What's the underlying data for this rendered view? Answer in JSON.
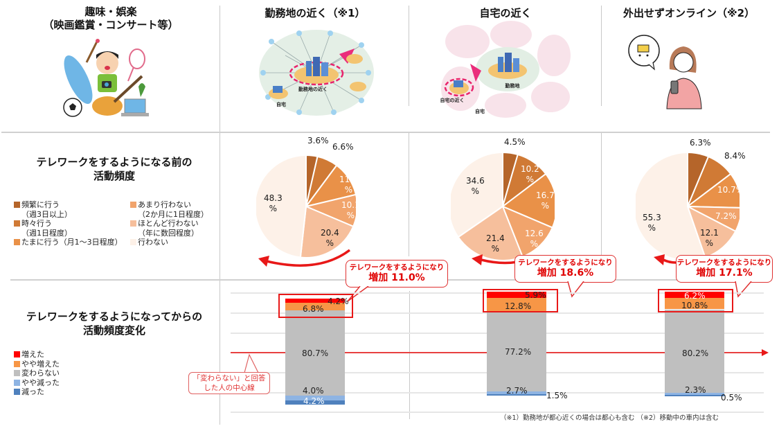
{
  "columns": {
    "hobby": {
      "title_line1": "趣味・娯楽",
      "title_line2": "（映画鑑賞・コンサート等）"
    },
    "near_work": {
      "title": "勤務地の近く（※1）",
      "illus_label_center": "勤務地の近く",
      "illus_label_home": "自宅"
    },
    "near_home": {
      "title": "自宅の近く",
      "illus_label_center": "勤務地",
      "illus_label_near": "自宅の近く",
      "illus_label_home": "自宅"
    },
    "online": {
      "title": "外出せずオンライン（※2）"
    }
  },
  "before_section": {
    "title_line1": "テレワークをするようになる前の",
    "title_line2": "活動頻度",
    "legend": [
      {
        "label": "頻繁に行う",
        "sub": "（週3日以上）",
        "color": "#b5652a"
      },
      {
        "label": "時々行う",
        "sub": "（週1日程度）",
        "color": "#d07a35"
      },
      {
        "label": "たまに行う（月1～3日程度）",
        "sub": "",
        "color": "#e99148"
      },
      {
        "label": "あまり行わない",
        "sub": "（2か月に1日程度）",
        "color": "#f1a46c"
      },
      {
        "label": "ほとんど行わない",
        "sub": "（年に数回程度）",
        "color": "#f6bf9c"
      },
      {
        "label": "行わない",
        "sub": "",
        "color": "#fdf1e8"
      }
    ]
  },
  "after_section": {
    "title_line1": "テレワークをするようになってからの",
    "title_line2": "活動頻度変化",
    "legend": [
      {
        "label": "増えた",
        "color": "#ff0000"
      },
      {
        "label": "やや増えた",
        "color": "#f79646"
      },
      {
        "label": "変わらない",
        "color": "#bfbfbf"
      },
      {
        "label": "やや減った",
        "color": "#8eb4e3"
      },
      {
        "label": "減った",
        "color": "#4f81bd"
      }
    ],
    "center_line_note_line1": "「変わらない」と回答",
    "center_line_note_line2": "した人の中心線"
  },
  "callouts": [
    {
      "line1": "テレワークをするようになり",
      "line2": "増加 11.0%"
    },
    {
      "line1": "テレワークをするようになり",
      "line2": "増加 18.6%"
    },
    {
      "line1": "テレワークをするようになり",
      "line2": "増加 17.1%"
    }
  ],
  "footnote": "（※1）勤務地が都心近くの場合は都心も含む （※2）移動中の車内は含む",
  "chart_data": [
    {
      "type": "pie",
      "title": "勤務地の近く（※1）: テレワークをするようになる前の活動頻度",
      "categories": [
        "頻繁に行う",
        "時々行う",
        "たまに行う",
        "あまり行わない",
        "ほとんど行わない",
        "行わない"
      ],
      "values": [
        3.6,
        6.6,
        11.1,
        10.1,
        20.4,
        48.3
      ],
      "labels": [
        "3.6%",
        "6.6%",
        "11.1%",
        "10.1%",
        "20.4%",
        "48.3%"
      ]
    },
    {
      "type": "pie",
      "title": "自宅の近く: テレワークをするようになる前の活動頻度",
      "categories": [
        "頻繁に行う",
        "時々行う",
        "たまに行う",
        "あまり行わない",
        "ほとんど行わない",
        "行わない"
      ],
      "values": [
        4.5,
        10.2,
        16.7,
        12.6,
        21.4,
        34.6
      ],
      "labels": [
        "4.5%",
        "10.2%",
        "16.7%",
        "12.6%",
        "21.4%",
        "34.6%"
      ]
    },
    {
      "type": "pie",
      "title": "外出せずオンライン（※2）: テレワークをするようになる前の活動頻度",
      "categories": [
        "頻繁に行う",
        "時々行う",
        "たまに行う",
        "あまり行わない",
        "ほとんど行わない",
        "行わない"
      ],
      "values": [
        6.3,
        8.4,
        10.7,
        7.2,
        12.1,
        55.3
      ],
      "labels": [
        "6.3%",
        "8.4%",
        "10.7%",
        "7.2%",
        "12.1%",
        "55.3%"
      ]
    },
    {
      "type": "bar",
      "stacked": true,
      "title": "テレワークをするようになってからの活動頻度変化",
      "categories": [
        "勤務地の近く（※1）",
        "自宅の近く",
        "外出せずオンライン（※2）"
      ],
      "series": [
        {
          "name": "増えた",
          "values": [
            4.2,
            5.9,
            6.2
          ]
        },
        {
          "name": "やや増えた",
          "values": [
            6.8,
            12.8,
            10.8
          ]
        },
        {
          "name": "変わらない",
          "values": [
            80.7,
            77.2,
            80.2
          ]
        },
        {
          "name": "やや減った",
          "values": [
            4.0,
            2.7,
            2.3
          ]
        },
        {
          "name": "減った",
          "values": [
            4.2,
            1.5,
            0.5
          ]
        }
      ],
      "annotations": [
        "増加 11.0%",
        "増加 18.6%",
        "増加 17.1%",
        "「変わらない」と回答した人の中心線"
      ]
    }
  ],
  "pie_label_text": {
    "p0": [
      "3.6%",
      "6.6%",
      "11.1\n%",
      "10.1\n%",
      "20.4\n%",
      "48.3\n%"
    ],
    "p1": [
      "4.5%",
      "10.2\n%",
      "16.7\n%",
      "12.6\n%",
      "21.4\n%",
      "34.6\n%"
    ],
    "p2": [
      "6.3%",
      "8.4%",
      "10.7%",
      "7.2%",
      "12.1\n%",
      "55.3\n%"
    ]
  },
  "bar_labels": {
    "b0": {
      "inc": "4.2%",
      "slight_inc": "6.8%",
      "same": "80.7%",
      "slight_dec": "4.0%",
      "dec": "4.2%"
    },
    "b1": {
      "inc": "5.9%",
      "slight_inc": "12.8%",
      "same": "77.2%",
      "slight_dec": "2.7%",
      "dec": "1.5%"
    },
    "b2": {
      "inc": "6.2%",
      "slight_inc": "10.8%",
      "same": "80.2%",
      "slight_dec": "2.3%",
      "dec": "0.5%"
    }
  }
}
